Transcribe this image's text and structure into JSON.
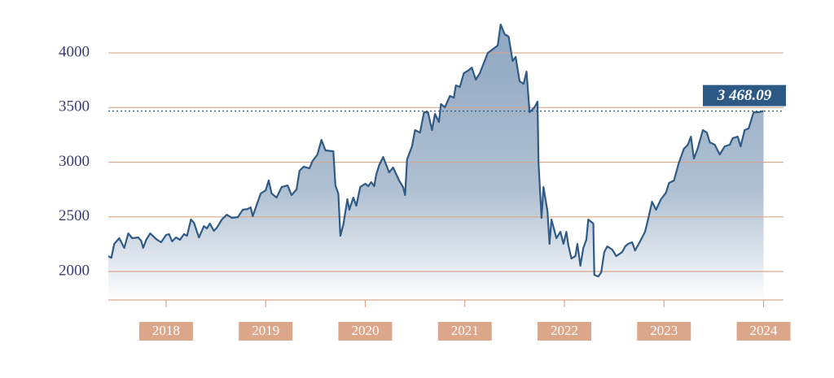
{
  "chart_data": {
    "type": "area",
    "x": [
      2017.42,
      2017.45,
      2017.48,
      2017.53,
      2017.58,
      2017.62,
      2017.66,
      2017.72,
      2017.75,
      2017.77,
      2017.8,
      2017.84,
      2017.9,
      2017.95,
      2018.0,
      2018.03,
      2018.06,
      2018.1,
      2018.14,
      2018.18,
      2018.21,
      2018.25,
      2018.28,
      2018.33,
      2018.38,
      2018.41,
      2018.44,
      2018.48,
      2018.51,
      2018.56,
      2018.61,
      2018.66,
      2018.72,
      2018.77,
      2018.82,
      2018.85,
      2018.87,
      2018.91,
      2018.95,
      2019.0,
      2019.03,
      2019.06,
      2019.11,
      2019.16,
      2019.22,
      2019.26,
      2019.31,
      2019.34,
      2019.38,
      2019.44,
      2019.47,
      2019.52,
      2019.56,
      2019.6,
      2019.68,
      2019.7,
      2019.73,
      2019.75,
      2019.78,
      2019.82,
      2019.84,
      2019.88,
      2019.91,
      2019.95,
      2020.0,
      2020.03,
      2020.06,
      2020.09,
      2020.11,
      2020.14,
      2020.18,
      2020.24,
      2020.28,
      2020.34,
      2020.38,
      2020.4,
      2020.42,
      2020.47,
      2020.5,
      2020.55,
      2020.59,
      2020.63,
      2020.67,
      2020.7,
      2020.74,
      2020.76,
      2020.8,
      2020.85,
      2020.89,
      2020.91,
      2020.95,
      2020.99,
      2021.03,
      2021.07,
      2021.11,
      2021.15,
      2021.23,
      2021.33,
      2021.36,
      2021.4,
      2021.44,
      2021.48,
      2021.51,
      2021.55,
      2021.59,
      2021.62,
      2021.65,
      2021.7,
      2021.73,
      2021.74,
      2021.77,
      2021.79,
      2021.83,
      2021.85,
      2021.87,
      2021.92,
      2021.96,
      2021.99,
      2022.02,
      2022.04,
      2022.07,
      2022.11,
      2022.13,
      2022.16,
      2022.19,
      2022.22,
      2022.24,
      2022.29,
      2022.3,
      2022.34,
      2022.37,
      2022.4,
      2022.43,
      2022.48,
      2022.52,
      2022.58,
      2022.61,
      2022.64,
      2022.68,
      2022.71,
      2022.76,
      2022.81,
      2022.84,
      2022.88,
      2022.92,
      2022.97,
      2023.02,
      2023.05,
      2023.1,
      2023.15,
      2023.2,
      2023.24,
      2023.27,
      2023.3,
      2023.34,
      2023.39,
      2023.43,
      2023.46,
      2023.51,
      2023.56,
      2023.61,
      2023.66,
      2023.69,
      2023.74,
      2023.77,
      2023.81,
      2023.85,
      2023.9,
      2023.95,
      2024.0
    ],
    "series": [
      {
        "color": "#2f5b86",
        "fill": "#8ea6c1",
        "values": [
          2141,
          2126,
          2253,
          2305,
          2216,
          2349,
          2305,
          2312,
          2283,
          2216,
          2290,
          2349,
          2297,
          2268,
          2335,
          2342,
          2275,
          2312,
          2290,
          2342,
          2327,
          2476,
          2446,
          2312,
          2416,
          2394,
          2439,
          2372,
          2401,
          2476,
          2520,
          2491,
          2498,
          2565,
          2572,
          2587,
          2506,
          2610,
          2714,
          2743,
          2833,
          2714,
          2677,
          2773,
          2788,
          2699,
          2751,
          2922,
          2959,
          2944,
          3011,
          3071,
          3204,
          3108,
          3100,
          2788,
          2714,
          2327,
          2431,
          2662,
          2565,
          2677,
          2602,
          2773,
          2803,
          2781,
          2818,
          2781,
          2885,
          2974,
          3048,
          2907,
          2952,
          2833,
          2773,
          2699,
          3026,
          3145,
          3294,
          3271,
          3457,
          3457,
          3294,
          3442,
          3368,
          3532,
          3502,
          3606,
          3591,
          3703,
          3688,
          3814,
          3836,
          3866,
          3755,
          3814,
          4000,
          4067,
          4260,
          4171,
          4149,
          3926,
          3963,
          3740,
          3717,
          3829,
          3457,
          3502,
          3554,
          2996,
          2491,
          2773,
          2550,
          2253,
          2476,
          2305,
          2364,
          2253,
          2364,
          2238,
          2119,
          2141,
          2253,
          2052,
          2216,
          2290,
          2476,
          2439,
          1970,
          1955,
          1993,
          2178,
          2230,
          2201,
          2141,
          2178,
          2230,
          2253,
          2268,
          2193,
          2275,
          2364,
          2476,
          2639,
          2565,
          2662,
          2721,
          2810,
          2833,
          2996,
          3123,
          3160,
          3234,
          3033,
          3130,
          3294,
          3271,
          3182,
          3160,
          3071,
          3145,
          3160,
          3219,
          3234,
          3145,
          3294,
          3309,
          3457,
          3457,
          3468.09
        ]
      }
    ],
    "annotation": {
      "value": 3468.09,
      "label": "3 468.09"
    },
    "xlim": [
      2017.42,
      2024.2
    ],
    "xticks": [
      2018,
      2019,
      2020,
      2021,
      2022,
      2023,
      2024
    ],
    "ylim": [
      1740,
      4335
    ],
    "yticks": [
      2000,
      2500,
      3000,
      3500,
      4000
    ],
    "grid": true
  }
}
